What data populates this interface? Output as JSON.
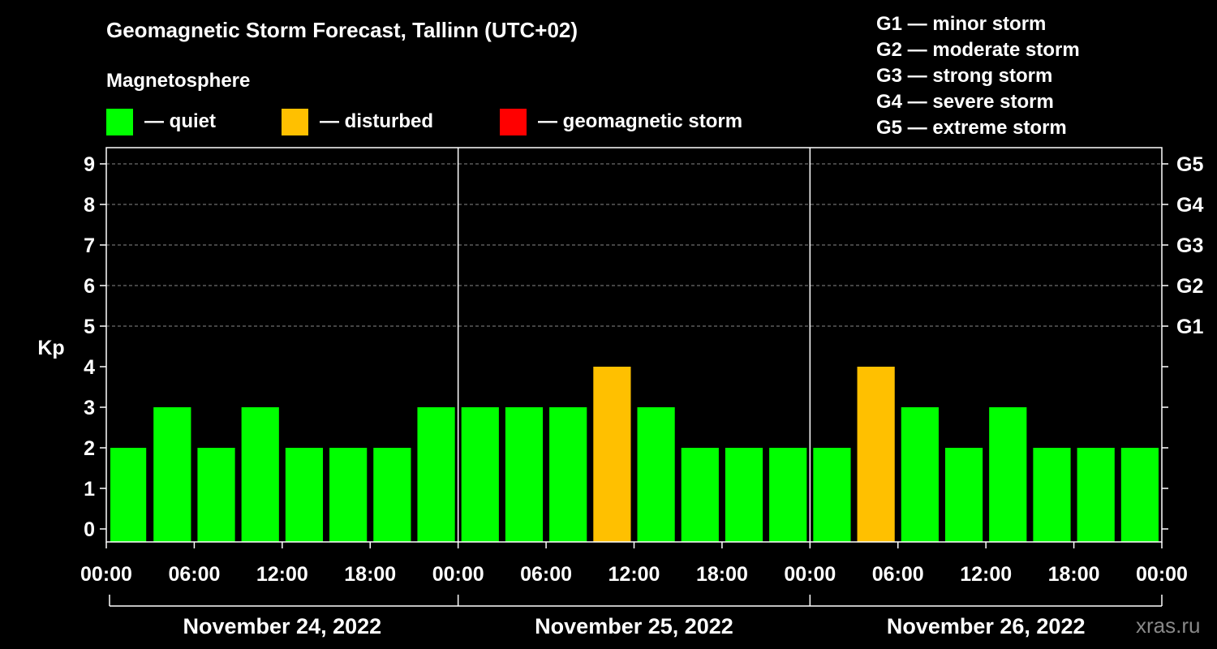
{
  "title": "Geomagnetic Storm Forecast, Tallinn (UTC+02)",
  "subtitle": "Magnetosphere",
  "legend": [
    {
      "label": "— quiet",
      "color": "#00ff00"
    },
    {
      "label": "— disturbed",
      "color": "#ffc000"
    },
    {
      "label": "— geomagnetic storm",
      "color": "#ff0000"
    }
  ],
  "storm_levels": [
    "G1 — minor storm",
    "G2 — moderate storm",
    "G3 — strong storm",
    "G4 — severe storm",
    "G5 — extreme storm"
  ],
  "watermark": "xras.ru",
  "chart_data": {
    "type": "bar",
    "ylabel": "Kp",
    "ylim": [
      0,
      9
    ],
    "yticks": [
      0,
      1,
      2,
      3,
      4,
      5,
      6,
      7,
      8,
      9
    ],
    "right_ticks": [
      {
        "value": 5,
        "label": "G1"
      },
      {
        "value": 6,
        "label": "G2"
      },
      {
        "value": 7,
        "label": "G3"
      },
      {
        "value": 8,
        "label": "G4"
      },
      {
        "value": 9,
        "label": "G5"
      }
    ],
    "xtick_labels": [
      "00:00",
      "06:00",
      "12:00",
      "18:00",
      "00:00",
      "06:00",
      "12:00",
      "18:00",
      "00:00",
      "06:00",
      "12:00",
      "18:00",
      "00:00"
    ],
    "days": [
      "November 24, 2022",
      "November 25, 2022",
      "November 26, 2022"
    ],
    "interval_hours": 3,
    "values": [
      2,
      3,
      2,
      3,
      2,
      2,
      2,
      3,
      3,
      3,
      3,
      4,
      3,
      2,
      2,
      2,
      2,
      4,
      3,
      2,
      3,
      2,
      2,
      2
    ],
    "colors": {
      "quiet": "#00ff00",
      "disturbed": "#ffc000",
      "storm": "#ff0000"
    },
    "grid": true
  }
}
